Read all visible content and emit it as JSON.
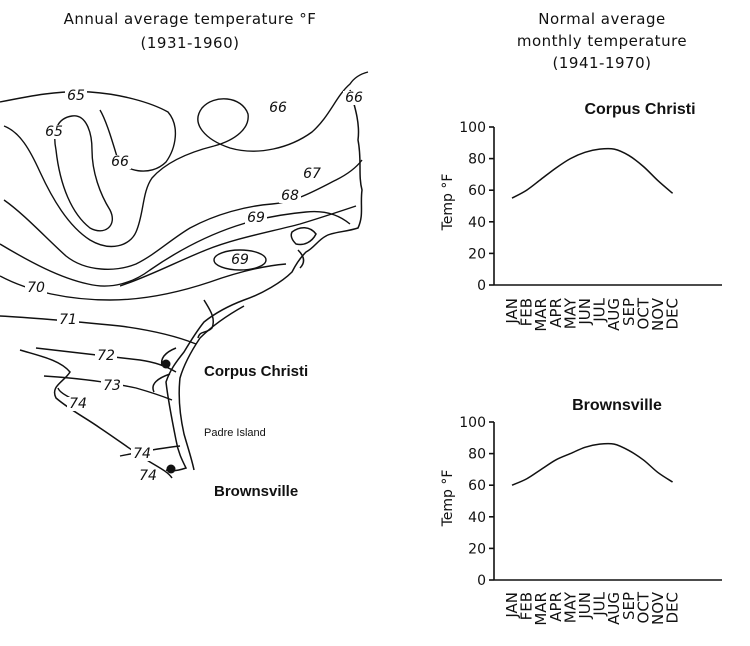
{
  "map": {
    "title_line1": "Annual average temperature °F",
    "title_line2": "(1931-1960)",
    "isotherm_labels": [
      "65",
      "65",
      "66",
      "66",
      "66",
      "67",
      "68",
      "69",
      "69",
      "70",
      "71",
      "72",
      "73",
      "74",
      "74",
      "74"
    ],
    "places": {
      "corpus": "Corpus Christi",
      "padre": "Padre Island",
      "brownsville": "Brownsville"
    }
  },
  "charts_header": {
    "line1": "Normal average",
    "line2": "monthly temperature",
    "line3": "(1941-1970)"
  },
  "chart_data": [
    {
      "type": "line",
      "title": "Corpus Christi",
      "ylabel": "Temp °F",
      "categories": [
        "JAN",
        "FEB",
        "MAR",
        "APR",
        "MAY",
        "JUN",
        "JUL",
        "AUG",
        "SEP",
        "OCT",
        "NOV",
        "DEC"
      ],
      "values": [
        55,
        60,
        67,
        74,
        80,
        84,
        86,
        86,
        82,
        75,
        66,
        58
      ],
      "ylim": [
        0,
        100
      ],
      "yticks": [
        0,
        20,
        40,
        60,
        80,
        100
      ],
      "grid": false
    },
    {
      "type": "line",
      "title": "Brownsville",
      "ylabel": "Temp °F",
      "categories": [
        "JAN",
        "FEB",
        "MAR",
        "APR",
        "MAY",
        "JUN",
        "JUL",
        "AUG",
        "SEP",
        "OCT",
        "NOV",
        "DEC"
      ],
      "values": [
        60,
        64,
        70,
        76,
        80,
        84,
        86,
        86,
        82,
        76,
        68,
        62
      ],
      "ylim": [
        0,
        100
      ],
      "yticks": [
        0,
        20,
        40,
        60,
        80,
        100
      ],
      "grid": false
    }
  ]
}
